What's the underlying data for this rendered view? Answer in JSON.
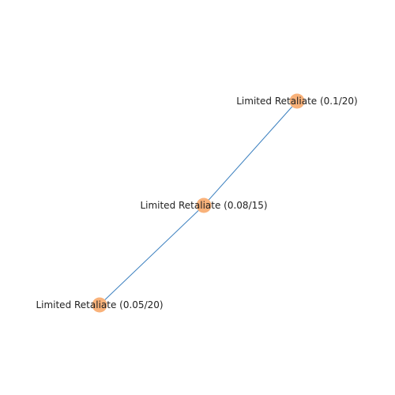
{
  "graph": {
    "nodes": [
      {
        "id": "n1",
        "label": "Limited Retaliate (0.1/20)"
      },
      {
        "id": "n2",
        "label": "Limited Retaliate (0.08/15)"
      },
      {
        "id": "n3",
        "label": "Limited Retaliate (0.05/20)"
      }
    ],
    "edges": [
      {
        "source": "n1",
        "target": "n2"
      },
      {
        "source": "n2",
        "target": "n3"
      }
    ],
    "colors": {
      "node_fill": "#f9b27a",
      "edge_stroke": "#3a7fbf"
    }
  }
}
